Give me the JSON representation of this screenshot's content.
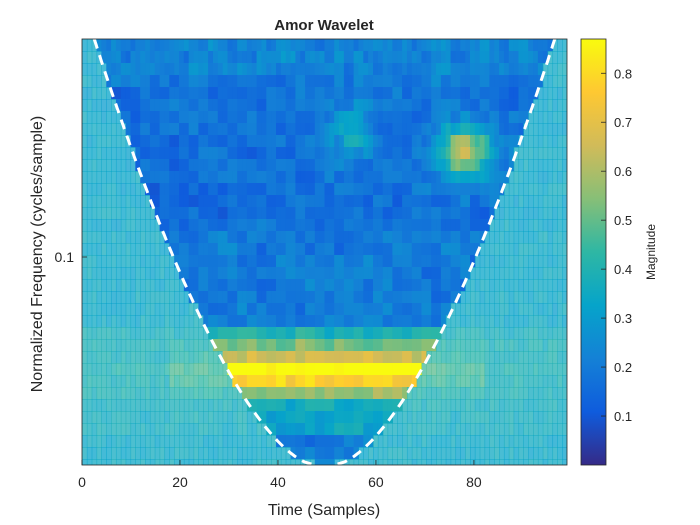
{
  "chart_data": {
    "type": "heatmap",
    "title": "Amor Wavelet",
    "xlabel": "Time (Samples)",
    "ylabel": "Normalized Frequency  (cycles/sample)",
    "xlim": [
      0,
      99
    ],
    "x_ticks": [
      0,
      20,
      40,
      60,
      80
    ],
    "y_scale": "log",
    "y_ticks": [
      0.1
    ],
    "colorbar": {
      "label": "Magnitude",
      "limits": [
        0,
        0.87
      ],
      "ticks": [
        0.1,
        0.2,
        0.3,
        0.4,
        0.5,
        0.6,
        0.7,
        0.8
      ],
      "colormap": "parula"
    },
    "cone_of_influence": {
      "style": "dashed",
      "color": "#ffffff"
    },
    "features": [
      {
        "name": "dominant band",
        "magnitude_peak": 0.87,
        "time_range": [
          24,
          76
        ]
      }
    ]
  },
  "colors": {
    "parula_low": "#352a87",
    "parula_mid": "#1ebfa8",
    "parula_high": "#f9fb0e"
  }
}
